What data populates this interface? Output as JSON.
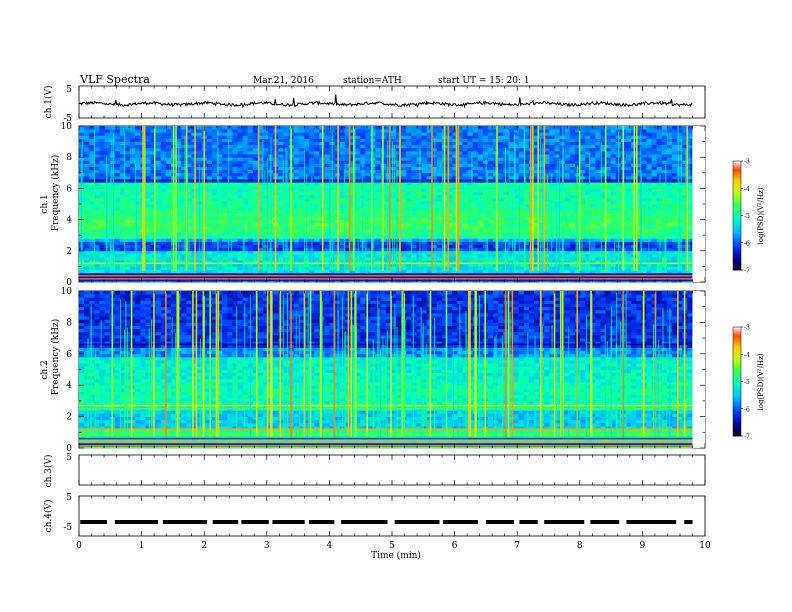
{
  "header": {
    "title": "VLF Spectra",
    "date": "Mar.21, 2016",
    "station": "station=ATH",
    "start": "start  UT =   15: 20: 1"
  },
  "chart_data": [
    {
      "type": "line",
      "name": "ch.1 waveform",
      "ylabel": "ch.1(V)",
      "ylim": [
        -5,
        5
      ],
      "yticks": [
        "5",
        "-5"
      ],
      "level": 0.0
    },
    {
      "type": "heatmap",
      "name": "ch.1 spectrogram",
      "ylabel_line1": "ch.1",
      "ylabel_line2": "Frequency  (kHz)",
      "ylim": [
        0,
        10
      ],
      "yticks": [
        "10",
        "8",
        "6",
        "4",
        "2",
        "0"
      ],
      "colorbar": {
        "label": "log(PSD)(V²/Hz)",
        "range": [
          -7,
          -3
        ],
        "ticks": [
          "-3",
          "-4",
          "-5",
          "-6",
          "-7"
        ]
      }
    },
    {
      "type": "heatmap",
      "name": "ch.2 spectrogram",
      "ylabel_line1": "ch.2",
      "ylabel_line2": "Frequency  (kHz)",
      "ylim": [
        0,
        10
      ],
      "yticks": [
        "10",
        "8",
        "6",
        "4",
        "2",
        "0"
      ],
      "colorbar": {
        "label": "log(PSD)(V²/Hz)",
        "range": [
          -7,
          -3
        ],
        "ticks": [
          "-3",
          "-4",
          "-5",
          "-6",
          "-7"
        ]
      }
    },
    {
      "type": "line",
      "name": "ch.3 waveform",
      "ylabel": "ch.3(V)",
      "ylim": [
        -5,
        5
      ],
      "yticks": [
        "5"
      ]
    },
    {
      "type": "line",
      "name": "ch.4 waveform",
      "ylabel": "ch.4(V)",
      "ylim": [
        -5,
        5
      ],
      "yticks": [
        "5",
        "-5"
      ],
      "level": -1.5
    }
  ],
  "x_axis": {
    "label": "Time  (min)",
    "range": [
      0,
      10
    ],
    "ticks": [
      "0",
      "1",
      "2",
      "3",
      "4",
      "5",
      "6",
      "7",
      "8",
      "9",
      "10"
    ],
    "data_end": 9.8
  }
}
